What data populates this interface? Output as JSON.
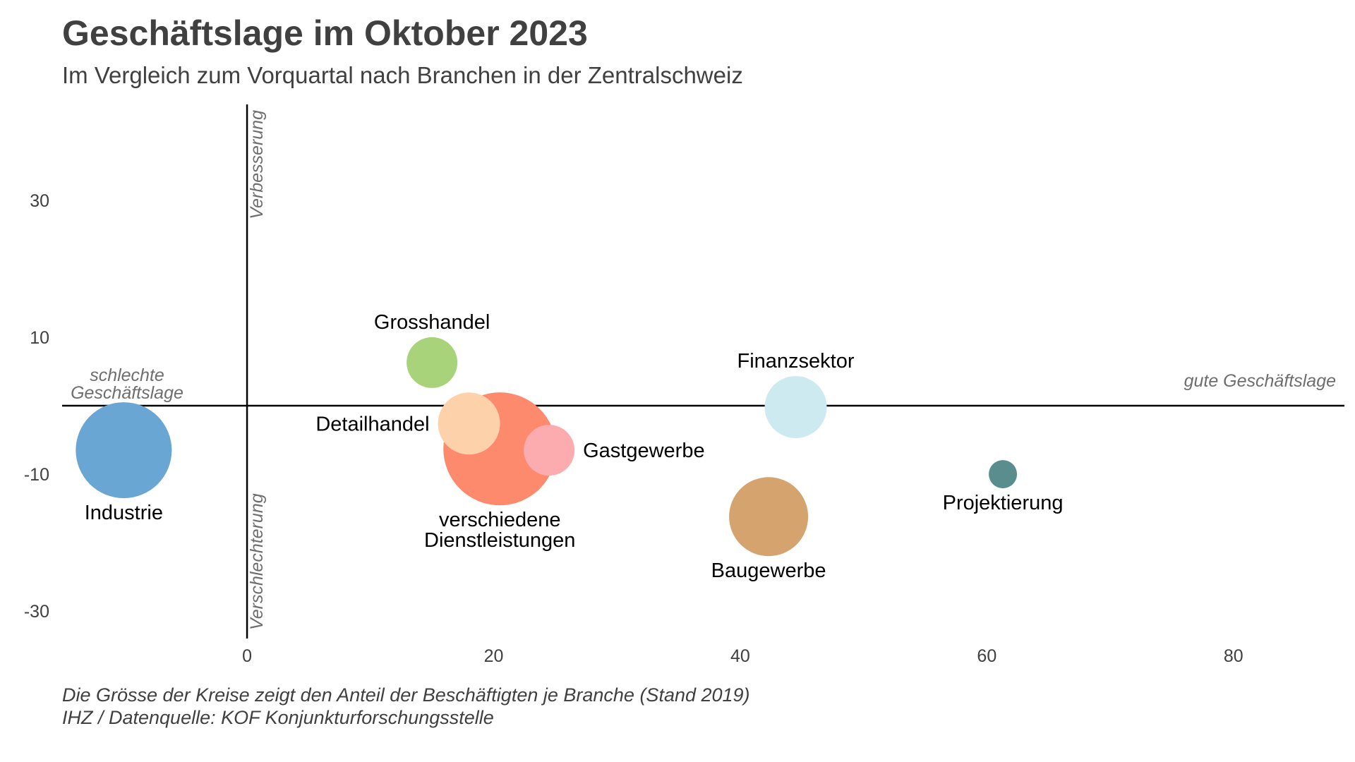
{
  "title": "Geschäftslage im Oktober 2023",
  "subtitle": "Im Vergleich zum Vorquartal nach Branchen in der Zentralschweiz",
  "caption": {
    "line1": "Die Grösse der Kreise zeigt den Anteil der Beschäftigten je Branche (Stand 2019)",
    "line2": "IHZ / Datenquelle: KOF Konjunkturforschungsstelle"
  },
  "chart_data": {
    "type": "scatter",
    "subtype": "bubble",
    "title": "Geschäftslage im Oktober 2023",
    "xlim": [
      -15,
      89
    ],
    "ylim": [
      -34,
      44
    ],
    "x_ticks": [
      0,
      20,
      40,
      60,
      80
    ],
    "y_ticks": [
      30,
      10,
      -10,
      -30
    ],
    "grid": false,
    "axis_annotations": {
      "left": "schlechte Geschäftslage",
      "left_lines": [
        "schlechte",
        "Geschäftslage"
      ],
      "right": "gute Geschäftslage",
      "top": "Verbesserung",
      "bottom": "Verschlechterung"
    },
    "points": [
      {
        "name": "Industrie",
        "x": -10,
        "y": -6.5,
        "size": 0.85,
        "color": "#6aa6d3",
        "label_position": "below"
      },
      {
        "name": "Grosshandel",
        "x": 15,
        "y": 6.3,
        "size": 0.45,
        "color": "#a9d37b",
        "label_position": "above"
      },
      {
        "name": "Detailhandel",
        "x": 18,
        "y": -2.6,
        "size": 0.55,
        "color": "#fdd2ab",
        "label_position": "left"
      },
      {
        "name": "verschiedene Dienstleistungen",
        "label_lines": [
          "verschiedene",
          "Dienstleistungen"
        ],
        "x": 20.5,
        "y": -6.3,
        "size": 1.0,
        "color": "#fd8a6d",
        "label_position": "below"
      },
      {
        "name": "Gastgewerbe",
        "x": 24.5,
        "y": -6.5,
        "size": 0.45,
        "color": "#fcabae",
        "label_position": "right"
      },
      {
        "name": "Finanzsektor",
        "x": 44.5,
        "y": -0.2,
        "size": 0.55,
        "color": "#cdeaf0",
        "label_position": "above"
      },
      {
        "name": "Projektierung",
        "x": 61.3,
        "y": -10,
        "size": 0.25,
        "color": "#5a8e8e",
        "label_position": "below"
      },
      {
        "name": "Baugewerbe",
        "x": 42.3,
        "y": -16.2,
        "size": 0.7,
        "color": "#d5a36d",
        "label_position": "below"
      }
    ]
  }
}
